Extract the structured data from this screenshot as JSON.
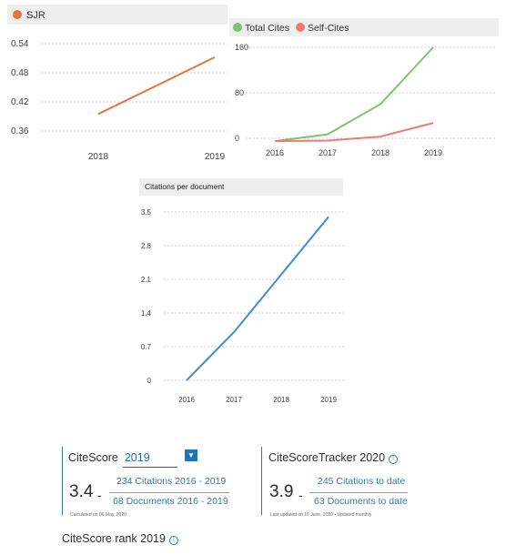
{
  "charts": {
    "sjr": {
      "legend": "SJR",
      "color": "#e8743b",
      "ylim": [
        0.33,
        0.56
      ],
      "yticks": [
        "0.54",
        "0.48",
        "0.42",
        "0.36"
      ],
      "ytick_values": [
        0.54,
        0.48,
        0.42,
        0.36
      ],
      "categories": [
        "2018",
        "2019"
      ],
      "values": [
        0.395,
        0.512
      ]
    },
    "cites": {
      "legend_total": "Total Cites",
      "legend_self": "Self-Cites",
      "color_total": "#7cc36f",
      "color_self": "#ee7b6e",
      "ylim": [
        0,
        160
      ],
      "yticks": [
        "160",
        "80",
        "0"
      ],
      "ytick_values": [
        160,
        80,
        0
      ],
      "categories": [
        "2016",
        "2017",
        "2018",
        "2019"
      ],
      "total": [
        -5,
        7,
        60,
        160
      ],
      "self": [
        -5,
        -4,
        3,
        27
      ]
    },
    "cpd": {
      "title": "Citations per document",
      "color": "#3a8dd4",
      "ylim": [
        0,
        3.5
      ],
      "yticks": [
        "3.5",
        "2.8",
        "2.1",
        "1.4",
        "0.7",
        "0"
      ],
      "ytick_values": [
        3.5,
        2.8,
        2.1,
        1.4,
        0.7,
        0
      ],
      "categories": [
        "2016",
        "2017",
        "2018",
        "2019"
      ],
      "values": [
        0,
        1.0,
        2.2,
        3.4
      ]
    }
  },
  "chart_data": [
    {
      "type": "line",
      "title": "",
      "series": [
        {
          "name": "SJR",
          "values": [
            0.395,
            0.512
          ]
        }
      ],
      "categories": [
        "2018",
        "2019"
      ],
      "ylim": [
        0.33,
        0.56
      ],
      "grid": true,
      "legend": "top-left"
    },
    {
      "type": "line",
      "title": "",
      "series": [
        {
          "name": "Total Cites",
          "values": [
            -5,
            7,
            60,
            160
          ]
        },
        {
          "name": "Self-Cites",
          "values": [
            -5,
            -4,
            3,
            27
          ]
        }
      ],
      "categories": [
        "2016",
        "2017",
        "2018",
        "2019"
      ],
      "ylim": [
        0,
        160
      ],
      "grid": true,
      "legend": "top-left"
    },
    {
      "type": "line",
      "title": "Citations per document",
      "series": [
        {
          "values": [
            0,
            1.0,
            2.2,
            3.4
          ]
        }
      ],
      "categories": [
        "2016",
        "2017",
        "2018",
        "2019"
      ],
      "ylim": [
        0,
        3.5
      ],
      "grid": true
    }
  ],
  "citescore": {
    "label": "CiteScore",
    "year": "2019",
    "value": "3.4",
    "dash": "-",
    "citations": "234 Citations 2016 - 2019",
    "documents": "68 Documents 2016 - 2019",
    "calculated": "Calculated on 06 May, 2020"
  },
  "tracker": {
    "label": "CiteScoreTracker 2020",
    "value": "3.9",
    "dash": "-",
    "citations": "245 Citations to date",
    "documents": "63 Documents to date",
    "updated": "Last updated on 10 June, 2020 • Updated monthly"
  },
  "rank": {
    "label": "CiteScore rank 2019"
  }
}
